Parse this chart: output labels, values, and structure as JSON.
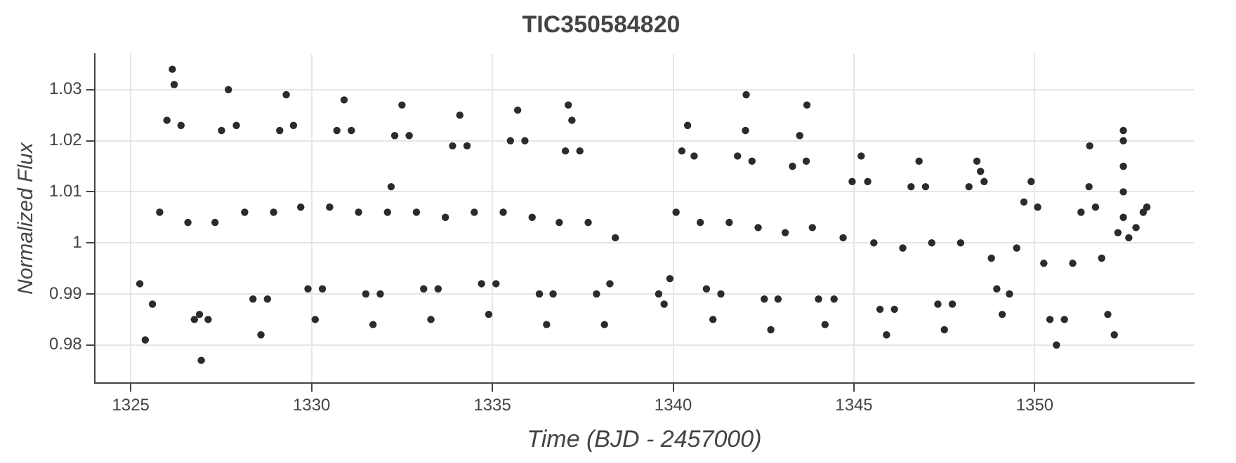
{
  "chart_data": {
    "type": "scatter",
    "title": "TIC350584820",
    "xlabel": "Time (BJD - 2457000)",
    "ylabel": "Normalized Flux",
    "x": [
      1325.25,
      1325.4,
      1325.6,
      1325.8,
      1326.0,
      1326.15,
      1326.2,
      1326.39,
      1326.58,
      1326.76,
      1326.9,
      1326.95,
      1327.14,
      1327.33,
      1327.51,
      1327.7,
      1327.92,
      1328.15,
      1328.38,
      1328.6,
      1328.78,
      1328.95,
      1329.12,
      1329.3,
      1329.5,
      1329.7,
      1329.9,
      1330.1,
      1330.3,
      1330.5,
      1330.7,
      1330.9,
      1331.1,
      1331.3,
      1331.5,
      1331.7,
      1331.9,
      1332.1,
      1332.2,
      1332.3,
      1332.5,
      1332.7,
      1332.9,
      1333.1,
      1333.3,
      1333.5,
      1333.7,
      1333.9,
      1334.1,
      1334.3,
      1334.5,
      1334.7,
      1334.9,
      1335.1,
      1335.3,
      1335.5,
      1335.7,
      1335.9,
      1336.1,
      1336.3,
      1336.5,
      1336.68,
      1336.85,
      1337.02,
      1337.1,
      1337.2,
      1337.42,
      1337.65,
      1337.88,
      1338.1,
      1338.25,
      1338.4,
      1339.6,
      1339.75,
      1339.91,
      1340.08,
      1340.24,
      1340.4,
      1340.58,
      1340.75,
      1340.92,
      1341.1,
      1341.32,
      1341.55,
      1341.78,
      1342.0,
      1342.02,
      1342.18,
      1342.35,
      1342.52,
      1342.7,
      1342.9,
      1343.1,
      1343.3,
      1343.5,
      1343.68,
      1343.7,
      1343.85,
      1344.02,
      1344.2,
      1344.45,
      1344.7,
      1344.95,
      1345.2,
      1345.38,
      1345.55,
      1345.72,
      1345.9,
      1346.12,
      1346.35,
      1346.58,
      1346.8,
      1346.98,
      1347.15,
      1347.32,
      1347.5,
      1347.72,
      1347.95,
      1348.18,
      1348.4,
      1348.5,
      1348.6,
      1348.8,
      1348.95,
      1349.1,
      1349.3,
      1349.5,
      1349.7,
      1349.9,
      1350.08,
      1350.25,
      1350.42,
      1350.6,
      1350.82,
      1351.05,
      1351.28,
      1351.5,
      1351.52,
      1351.68,
      1351.85,
      1352.02,
      1352.2,
      1352.3,
      1352.45,
      1352.45,
      1352.45,
      1352.45,
      1352.45,
      1352.6,
      1352.8,
      1353.0,
      1353.1
    ],
    "values": [
      0.992,
      0.981,
      0.988,
      1.006,
      1.024,
      1.034,
      1.031,
      1.023,
      1.004,
      0.985,
      0.986,
      0.977,
      0.985,
      1.004,
      1.022,
      1.03,
      1.023,
      1.006,
      0.989,
      0.982,
      0.989,
      1.006,
      1.022,
      1.029,
      1.023,
      1.007,
      0.991,
      0.985,
      0.991,
      1.007,
      1.022,
      1.028,
      1.022,
      1.006,
      0.99,
      0.984,
      0.99,
      1.006,
      1.011,
      1.021,
      1.027,
      1.021,
      1.006,
      0.991,
      0.985,
      0.991,
      1.005,
      1.019,
      1.025,
      1.019,
      1.006,
      0.992,
      0.986,
      0.992,
      1.006,
      1.02,
      1.026,
      1.02,
      1.005,
      0.99,
      0.984,
      0.99,
      1.004,
      1.018,
      1.027,
      1.024,
      1.018,
      1.004,
      0.99,
      0.984,
      0.992,
      1.001,
      0.99,
      0.988,
      0.993,
      1.006,
      1.018,
      1.023,
      1.017,
      1.004,
      0.991,
      0.985,
      0.99,
      1.004,
      1.017,
      1.022,
      1.029,
      1.016,
      1.003,
      0.989,
      0.983,
      0.989,
      1.002,
      1.015,
      1.021,
      1.016,
      1.027,
      1.003,
      0.989,
      0.984,
      0.989,
      1.001,
      1.012,
      1.017,
      1.012,
      1.0,
      0.987,
      0.982,
      0.987,
      0.999,
      1.011,
      1.016,
      1.011,
      1.0,
      0.988,
      0.983,
      0.988,
      1.0,
      1.011,
      1.016,
      1.014,
      1.012,
      0.997,
      0.991,
      0.986,
      0.99,
      0.999,
      1.008,
      1.012,
      1.007,
      0.996,
      0.985,
      0.98,
      0.985,
      0.996,
      1.006,
      1.011,
      1.019,
      1.007,
      0.997,
      0.986,
      0.982,
      1.002,
      1.005,
      1.01,
      1.015,
      1.02,
      1.022,
      1.001,
      1.003,
      1.006,
      1.007
    ],
    "color": "#2b2b2b",
    "marker": "circle",
    "xlim": [
      1324,
      1354.4
    ],
    "xticks": [
      1325,
      1330,
      1335,
      1340,
      1345,
      1350
    ],
    "ylim": [
      0.9725,
      1.037
    ],
    "yticks": [
      0.98,
      0.99,
      1,
      1.01,
      1.02,
      1.03
    ],
    "grid": true,
    "legend": false
  }
}
